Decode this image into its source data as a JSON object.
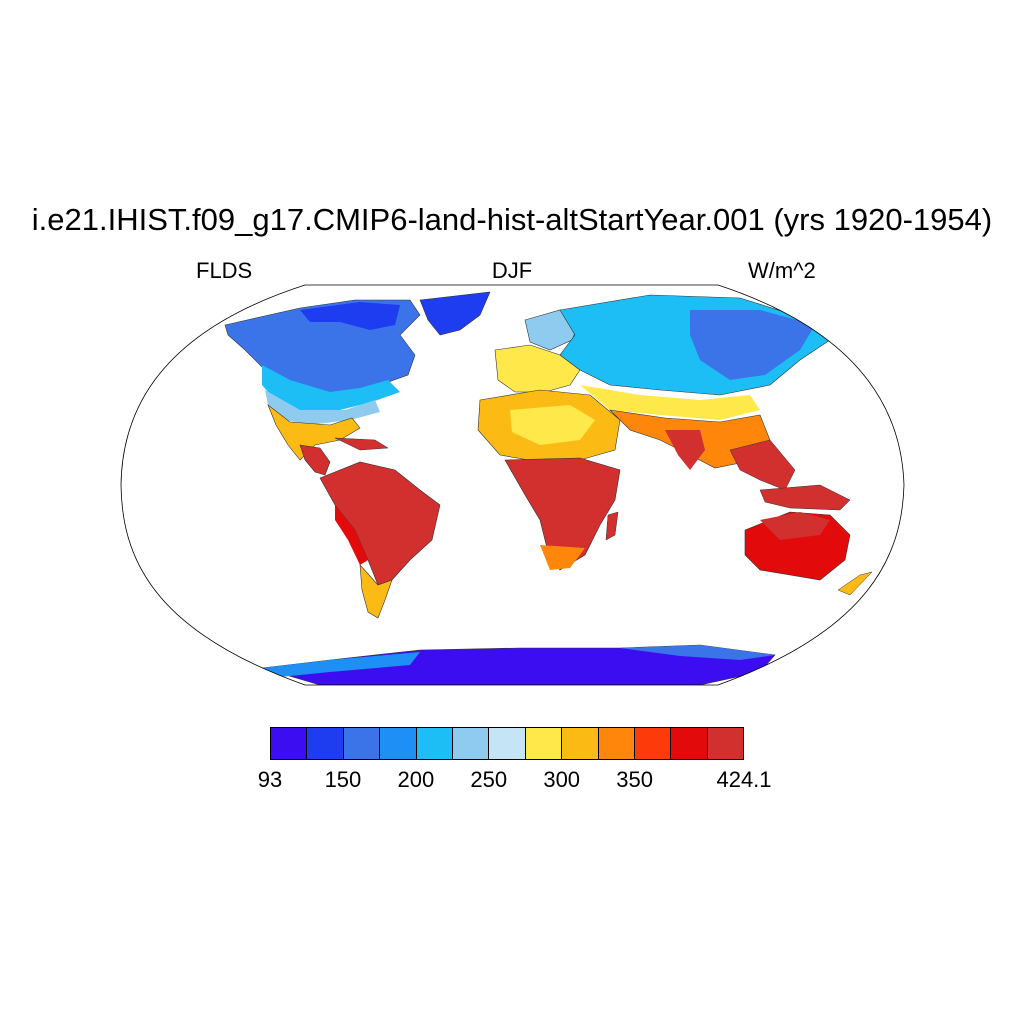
{
  "header": {
    "title": "i.e21.IHIST.f09_g17.CMIP6-land-hist-altStartYear.001 (yrs 1920-1954)",
    "variable": "FLDS",
    "season": "DJF",
    "units": "W/m^2"
  },
  "colorbar": {
    "colors": [
      "#3d0df2",
      "#1e3cf0",
      "#3b74e8",
      "#1e90f5",
      "#1cbef5",
      "#8ecbef",
      "#c5e4f5",
      "#ffe84a",
      "#fcbb14",
      "#fd860b",
      "#fb3c0a",
      "#e20a0a",
      "#d22f2f"
    ],
    "labels": [
      {
        "text": "93",
        "index": 0
      },
      {
        "text": "150",
        "index": 2
      },
      {
        "text": "200",
        "index": 4
      },
      {
        "text": "250",
        "index": 6
      },
      {
        "text": "300",
        "index": 8
      },
      {
        "text": "350",
        "index": 10
      },
      {
        "text": "424.1",
        "index": 13
      }
    ]
  }
}
